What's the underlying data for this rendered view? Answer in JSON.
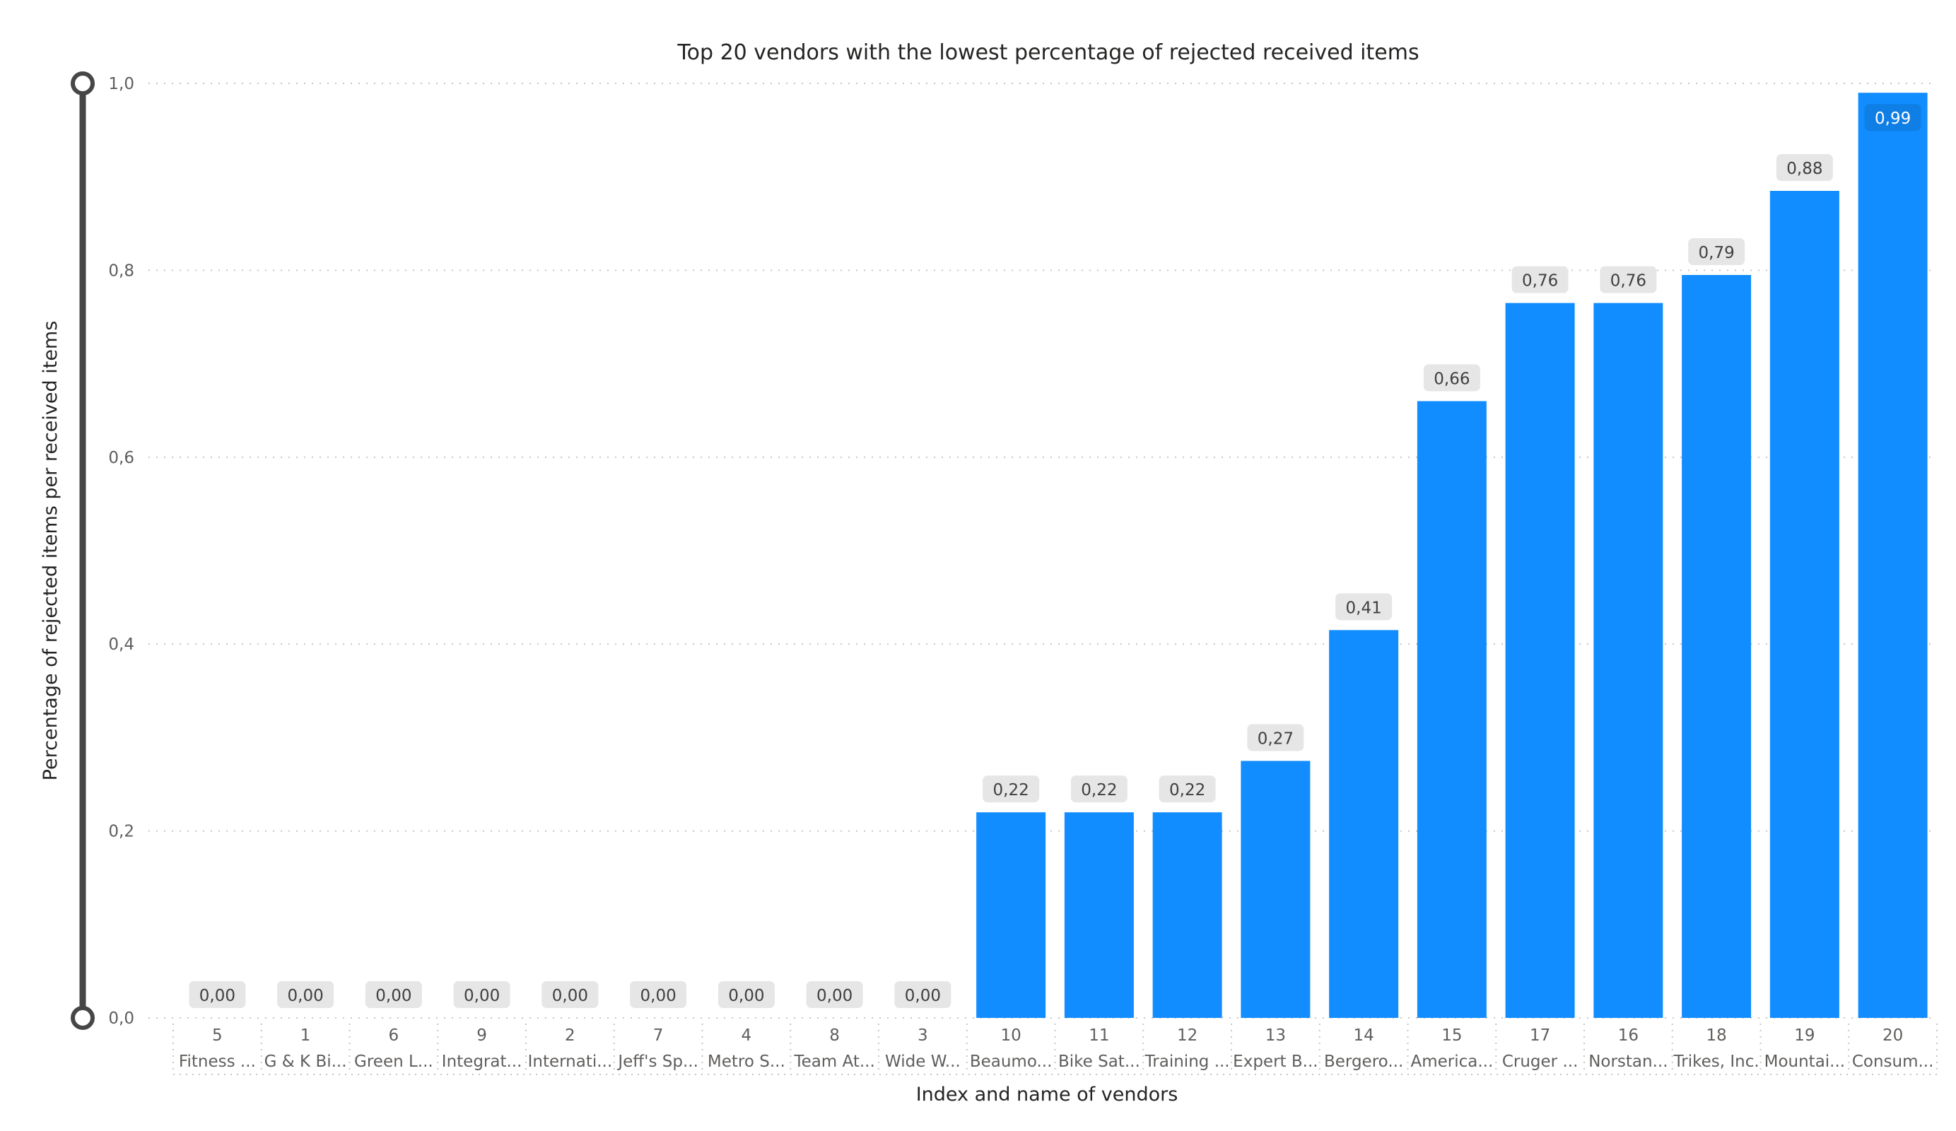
{
  "colors": {
    "bar": "#118dff",
    "label_bg": "#e6e6e6",
    "label_bg_inside": "#0f7fe6",
    "slider": "#464646"
  },
  "chart_data": {
    "type": "bar",
    "title": "Top 20 vendors with the lowest percentage of rejected received items",
    "xlabel": "Index and name of vendors",
    "ylabel": "Percentage of rejected items per received items",
    "ylim": [
      0,
      1.0
    ],
    "yticks": [
      "0,0",
      "0,2",
      "0,4",
      "0,6",
      "0,8",
      "1,0"
    ],
    "grid": true,
    "categories": [
      {
        "index": "5",
        "name": "Fitness ..."
      },
      {
        "index": "1",
        "name": "G & K Bi..."
      },
      {
        "index": "6",
        "name": "Green L..."
      },
      {
        "index": "9",
        "name": "Integrat..."
      },
      {
        "index": "2",
        "name": "Internati..."
      },
      {
        "index": "7",
        "name": "Jeff's Sp..."
      },
      {
        "index": "4",
        "name": "Metro S..."
      },
      {
        "index": "8",
        "name": "Team At..."
      },
      {
        "index": "3",
        "name": "Wide W..."
      },
      {
        "index": "10",
        "name": "Beaumo..."
      },
      {
        "index": "11",
        "name": "Bike Sat..."
      },
      {
        "index": "12",
        "name": "Training ..."
      },
      {
        "index": "13",
        "name": "Expert B..."
      },
      {
        "index": "14",
        "name": "Bergero..."
      },
      {
        "index": "15",
        "name": "America..."
      },
      {
        "index": "17",
        "name": "Cruger ..."
      },
      {
        "index": "16",
        "name": "Norstan..."
      },
      {
        "index": "18",
        "name": "Trikes, Inc."
      },
      {
        "index": "19",
        "name": "Mountai..."
      },
      {
        "index": "20",
        "name": "Consum..."
      }
    ],
    "values": [
      0,
      0,
      0,
      0,
      0,
      0,
      0,
      0,
      0,
      0.22,
      0.22,
      0.22,
      0.275,
      0.415,
      0.66,
      0.765,
      0.765,
      0.795,
      0.885,
      0.99
    ],
    "value_labels": [
      "0,00",
      "0,00",
      "0,00",
      "0,00",
      "0,00",
      "0,00",
      "0,00",
      "0,00",
      "0,00",
      "0,22",
      "0,22",
      "0,22",
      "0,27",
      "0,41",
      "0,66",
      "0,76",
      "0,76",
      "0,79",
      "0,88",
      "0,99"
    ]
  }
}
